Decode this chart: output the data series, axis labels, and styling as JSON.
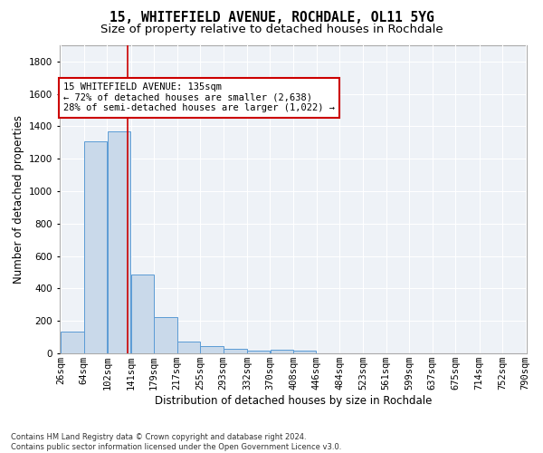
{
  "title": "15, WHITEFIELD AVENUE, ROCHDALE, OL11 5YG",
  "subtitle": "Size of property relative to detached houses in Rochdale",
  "xlabel": "Distribution of detached houses by size in Rochdale",
  "ylabel": "Number of detached properties",
  "bar_values": [
    135,
    1310,
    1370,
    485,
    225,
    75,
    45,
    28,
    15,
    20,
    15,
    0,
    0,
    0,
    0,
    0,
    0,
    0,
    0,
    0
  ],
  "bin_edges": [
    26,
    64,
    102,
    141,
    179,
    217,
    255,
    293,
    332,
    370,
    408,
    446,
    484,
    523,
    561,
    599,
    637,
    675,
    714,
    752,
    790
  ],
  "x_tick_labels": [
    "26sqm",
    "64sqm",
    "102sqm",
    "141sqm",
    "179sqm",
    "217sqm",
    "255sqm",
    "293sqm",
    "332sqm",
    "370sqm",
    "408sqm",
    "446sqm",
    "484sqm",
    "523sqm",
    "561sqm",
    "599sqm",
    "637sqm",
    "675sqm",
    "714sqm",
    "752sqm",
    "790sqm"
  ],
  "bar_color": "#c9d9ea",
  "bar_edge_color": "#5b9bd5",
  "property_line_x": 135,
  "property_line_color": "#cc0000",
  "ylim": [
    0,
    1900
  ],
  "yticks": [
    0,
    200,
    400,
    600,
    800,
    1000,
    1200,
    1400,
    1600,
    1800
  ],
  "annotation_text_line1": "15 WHITEFIELD AVENUE: 135sqm",
  "annotation_text_line2": "← 72% of detached houses are smaller (2,638)",
  "annotation_text_line3": "28% of semi-detached houses are larger (1,022) →",
  "annotation_box_color": "#ffffff",
  "annotation_box_edge": "#cc0000",
  "footer_text": "Contains HM Land Registry data © Crown copyright and database right 2024.\nContains public sector information licensed under the Open Government Licence v3.0.",
  "background_color": "#eef2f7",
  "grid_color": "#ffffff",
  "title_fontsize": 10.5,
  "subtitle_fontsize": 9.5,
  "axis_label_fontsize": 8.5,
  "tick_fontsize": 7.5,
  "footer_fontsize": 6,
  "annotation_fontsize": 7.5
}
